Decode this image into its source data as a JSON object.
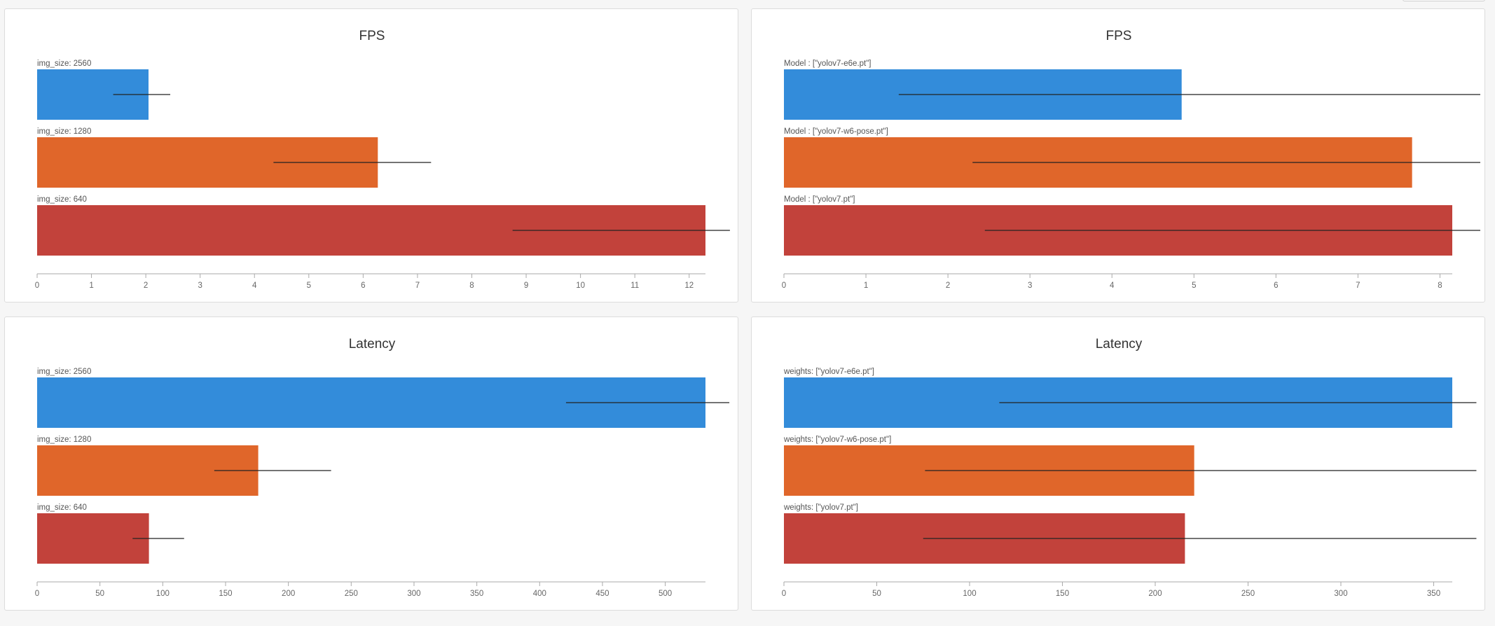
{
  "page": {
    "background": "#f6f6f6",
    "panel_background": "#ffffff"
  },
  "colors": {
    "series": [
      "#338cda",
      "#e0662a",
      "#c2423b"
    ],
    "errorbar": "#222222",
    "axis": "#aaaaaa"
  },
  "chart_data": [
    {
      "type": "bar",
      "orientation": "horizontal",
      "title": "FPS",
      "categories": [
        "img_size: 2560",
        "img_size: 1280",
        "img_size: 640"
      ],
      "values": [
        2.05,
        6.27,
        12.3
      ],
      "error_ranges": [
        [
          1.4,
          2.45
        ],
        [
          4.35,
          7.25
        ],
        [
          8.75,
          12.75
        ]
      ],
      "xticks": [
        "0",
        "1",
        "2",
        "3",
        "4",
        "5",
        "6",
        "7",
        "8",
        "9",
        "10",
        "11",
        "12"
      ],
      "xlim": [
        0,
        12.3
      ],
      "grid": false,
      "legend": "none"
    },
    {
      "type": "bar",
      "orientation": "horizontal",
      "title": "FPS",
      "categories": [
        "Model : [\"yolov7-e6e.pt\"]",
        "Model : [\"yolov7-w6-pose.pt\"]",
        "Model : [\"yolov7.pt\"]"
      ],
      "values": [
        4.85,
        7.66,
        8.15
      ],
      "error_ranges": [
        [
          1.4,
          8.5
        ],
        [
          2.3,
          8.5
        ],
        [
          2.45,
          8.5
        ]
      ],
      "xticks": [
        "0",
        "1",
        "2",
        "3",
        "4",
        "5",
        "6",
        "7",
        "8"
      ],
      "xlim": [
        0,
        8.15
      ],
      "grid": false,
      "legend": "none"
    },
    {
      "type": "bar",
      "orientation": "horizontal",
      "title": "Latency",
      "categories": [
        "img_size: 2560",
        "img_size: 1280",
        "img_size: 640"
      ],
      "values": [
        532,
        176,
        89
      ],
      "error_ranges": [
        [
          421,
          551
        ],
        [
          141,
          234
        ],
        [
          76,
          117
        ]
      ],
      "xticks": [
        "0",
        "50",
        "100",
        "150",
        "200",
        "250",
        "300",
        "350",
        "400",
        "450",
        "500"
      ],
      "xlim": [
        0,
        532
      ],
      "grid": false,
      "legend": "none"
    },
    {
      "type": "bar",
      "orientation": "horizontal",
      "title": "Latency",
      "categories": [
        "weights: [\"yolov7-e6e.pt\"]",
        "weights: [\"yolov7-w6-pose.pt\"]",
        "weights: [\"yolov7.pt\"]"
      ],
      "values": [
        360,
        221,
        216
      ],
      "error_ranges": [
        [
          116,
          373
        ],
        [
          76,
          373
        ],
        [
          75,
          373
        ]
      ],
      "xticks": [
        "0",
        "50",
        "100",
        "150",
        "200",
        "250",
        "300",
        "350"
      ],
      "xlim": [
        0,
        360
      ],
      "grid": false,
      "legend": "none"
    }
  ]
}
